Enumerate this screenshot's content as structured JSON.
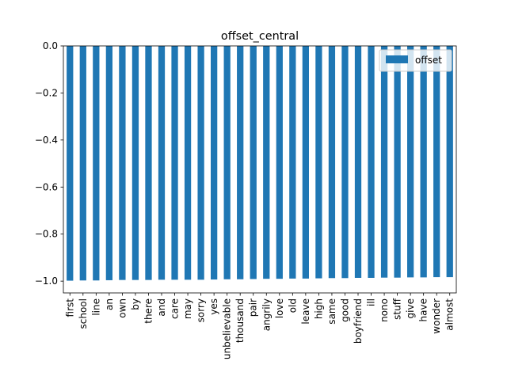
{
  "chart_data": {
    "type": "bar",
    "title": "offset_central",
    "xlabel": "",
    "ylabel": "",
    "ylim": [
      -1.05,
      0.0
    ],
    "yticks": [
      0.0,
      -0.2,
      -0.4,
      -0.6,
      -0.8,
      -1.0
    ],
    "ytick_labels": [
      "0.0",
      "−0.2",
      "−0.4",
      "−0.6",
      "−0.8",
      "−1.0"
    ],
    "legend": {
      "position": "top-right",
      "entries": [
        "offset"
      ]
    },
    "bar_color": "#1f77b4",
    "categories": [
      "first",
      "school",
      "line",
      "an",
      "own",
      "by",
      "there",
      "and",
      "care",
      "may",
      "sorry",
      "yes",
      "unbelievable",
      "thousand",
      "pair",
      "angrily",
      "love",
      "old",
      "leave",
      "high",
      "same",
      "good",
      "boyfriend",
      "ill",
      "nono",
      "stuff",
      "give",
      "have",
      "wonder",
      "almost"
    ],
    "series": [
      {
        "name": "offset",
        "values": [
          -0.998,
          -0.997,
          -0.997,
          -0.996,
          -0.995,
          -0.995,
          -0.995,
          -0.994,
          -0.994,
          -0.994,
          -0.994,
          -0.993,
          -0.992,
          -0.992,
          -0.991,
          -0.99,
          -0.99,
          -0.989,
          -0.989,
          -0.988,
          -0.987,
          -0.987,
          -0.986,
          -0.986,
          -0.985,
          -0.985,
          -0.984,
          -0.984,
          -0.983,
          -0.983
        ]
      }
    ]
  }
}
